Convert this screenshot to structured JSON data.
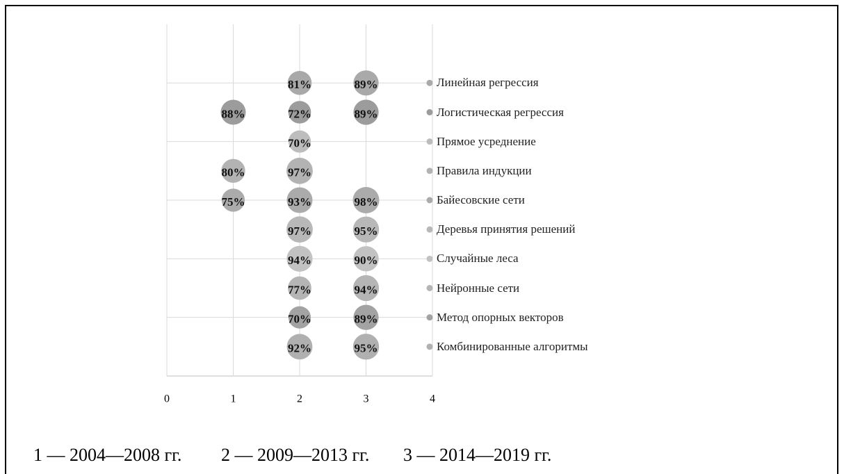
{
  "chart_data": {
    "type": "bubble",
    "xlim": [
      0,
      4
    ],
    "xticks": [
      0,
      1,
      2,
      3,
      4
    ],
    "ylim": [
      0,
      12
    ],
    "yticks": [
      0,
      2,
      4,
      6,
      8,
      10
    ],
    "grid": true,
    "legend": "right",
    "series": [
      {
        "name": "Линейная регрессия",
        "color": "#a9a9a9",
        "x": [
          2,
          3
        ],
        "y": [
          10,
          10
        ],
        "sizes": [
          81,
          89
        ],
        "value_labels": [
          "81%",
          "89%"
        ]
      },
      {
        "name": "Логистическая регрессия",
        "color": "#9c9c9c",
        "x": [
          1,
          2,
          3
        ],
        "y": [
          9,
          9,
          9
        ],
        "sizes": [
          88,
          72,
          89
        ],
        "value_labels": [
          "88%",
          "72%",
          "89%"
        ]
      },
      {
        "name": "Прямое усреднение",
        "color": "#bdbdbd",
        "x": [
          2
        ],
        "y": [
          8
        ],
        "sizes": [
          70
        ],
        "value_labels": [
          "70%"
        ]
      },
      {
        "name": "Правила индукции",
        "color": "#b3b3b3",
        "x": [
          1,
          2
        ],
        "y": [
          7,
          7
        ],
        "sizes": [
          80,
          97
        ],
        "value_labels": [
          "80%",
          "97%"
        ]
      },
      {
        "name": "Байесовские сети",
        "color": "#ababab",
        "x": [
          1,
          2,
          3
        ],
        "y": [
          6,
          6,
          6
        ],
        "sizes": [
          75,
          93,
          98
        ],
        "value_labels": [
          "75%",
          "93%",
          "98%"
        ]
      },
      {
        "name": "Деревья принятия решений",
        "color": "#b8b8b8",
        "x": [
          2,
          3
        ],
        "y": [
          5,
          5
        ],
        "sizes": [
          97,
          95
        ],
        "value_labels": [
          "97%",
          "95%"
        ]
      },
      {
        "name": "Случайные леса",
        "color": "#c2c2c2",
        "x": [
          2,
          3
        ],
        "y": [
          4,
          4
        ],
        "sizes": [
          94,
          90
        ],
        "value_labels": [
          "94%",
          "90%"
        ]
      },
      {
        "name": "Нейронные сети",
        "color": "#b5b5b5",
        "x": [
          2,
          3
        ],
        "y": [
          3,
          3
        ],
        "sizes": [
          77,
          94
        ],
        "value_labels": [
          "77%",
          "94%"
        ]
      },
      {
        "name": "Метод опорных векторов",
        "color": "#a3a3a3",
        "x": [
          2,
          3
        ],
        "y": [
          2,
          2
        ],
        "sizes": [
          70,
          89
        ],
        "value_labels": [
          "70%",
          "89%"
        ]
      },
      {
        "name": "Комбинированные алгоритмы",
        "color": "#b0b0b0",
        "x": [
          2,
          3
        ],
        "y": [
          1,
          1
        ],
        "sizes": [
          92,
          95
        ],
        "value_labels": [
          "92%",
          "95%"
        ]
      }
    ],
    "footnote": [
      "1 — 2004—2008 гг.",
      "2 — 2009—2013 гг.",
      "3 — 2014—2019 гг."
    ]
  }
}
